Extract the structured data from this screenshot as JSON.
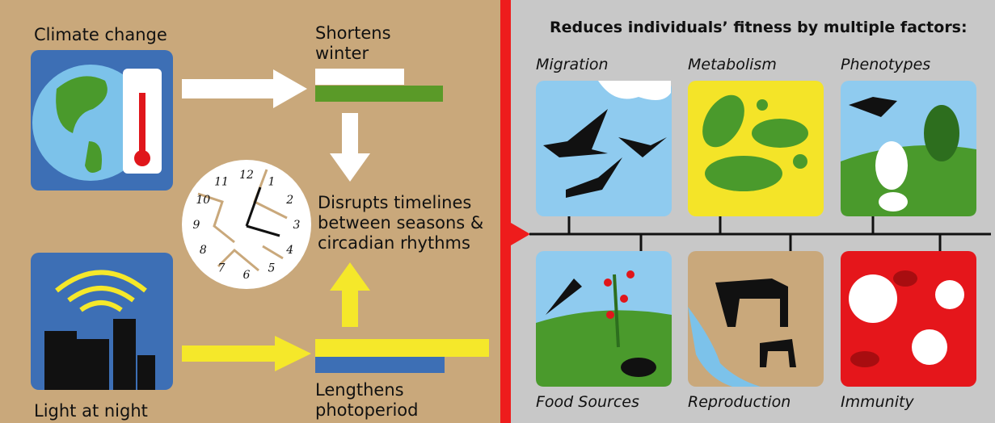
{
  "left": {
    "climate": "Climate change",
    "shortens": [
      "Shortens",
      "winter"
    ],
    "disrupts": [
      "Disrupts timelines",
      "between seasons &",
      "circadian rhythms"
    ],
    "light": "Light at night",
    "lengthens": [
      "Lengthens",
      "photoperiod"
    ],
    "clock": [
      "12",
      "1",
      "2",
      "3",
      "4",
      "5",
      "6",
      "7",
      "8",
      "9",
      "10",
      "11"
    ]
  },
  "right": {
    "title": "Reduces individuals’ fitness by multiple factors:",
    "top": [
      "Migration",
      "Metabolism",
      "Phenotypes"
    ],
    "bottom": [
      "Food Sources",
      "Reproduction",
      "Immunity"
    ]
  }
}
